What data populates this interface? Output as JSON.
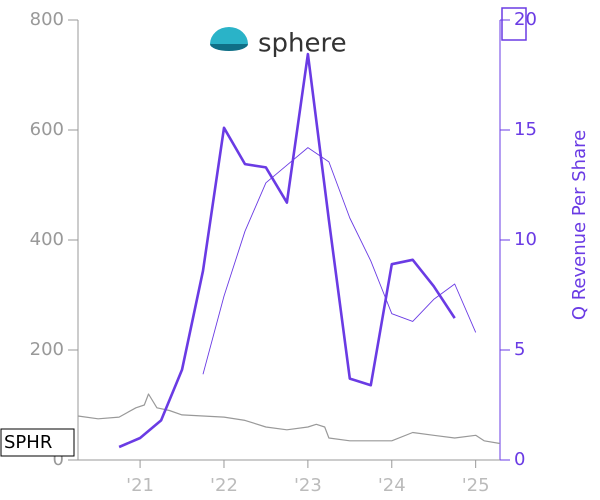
{
  "chart_data": {
    "type": "line",
    "logo_text": "sphere",
    "ticker": "SPHR",
    "y2_label": "Q Revenue Per Share",
    "xlim": [
      2020.26,
      2025.29
    ],
    "xticks": [
      {
        "value": 2021,
        "label": "'21"
      },
      {
        "value": 2022,
        "label": "'22"
      },
      {
        "value": 2023,
        "label": "'23"
      },
      {
        "value": 2024,
        "label": "'24"
      },
      {
        "value": 2025,
        "label": "'25"
      }
    ],
    "ylim": [
      0,
      800
    ],
    "yticks": [
      0,
      200,
      400,
      600,
      800
    ],
    "y2lim": [
      0,
      20
    ],
    "y2ticks": [
      0,
      5,
      10,
      15,
      20
    ],
    "grid": false,
    "series": [
      {
        "color": "#999999",
        "axis": "y",
        "width": 1.2,
        "x": [
          2020.26,
          2020.5,
          2020.75,
          2020.95,
          2021.05,
          2021.1,
          2021.2,
          2021.35,
          2021.5,
          2021.75,
          2022.0,
          2022.25,
          2022.5,
          2022.75,
          2023.0,
          2023.1,
          2023.2,
          2023.25,
          2023.5,
          2023.75,
          2024.0,
          2024.25,
          2024.5,
          2024.75,
          2025.0,
          2025.1,
          2025.29
        ],
        "values": [
          80,
          75,
          78,
          95,
          100,
          120,
          95,
          90,
          82,
          80,
          78,
          72,
          60,
          55,
          60,
          65,
          60,
          40,
          35,
          35,
          35,
          50,
          45,
          40,
          45,
          35,
          30
        ]
      },
      {
        "color": "#6a3be4",
        "axis": "y2",
        "width": 0.9,
        "x": [
          2021.75,
          2022.0,
          2022.25,
          2022.5,
          2022.75,
          2023.0,
          2023.25,
          2023.5,
          2023.75,
          2024.0,
          2024.25,
          2024.5,
          2024.75,
          2025.0
        ],
        "values": [
          3.9,
          7.45,
          10.4,
          12.6,
          13.4,
          14.2,
          13.55,
          11.0,
          9.05,
          6.65,
          6.3,
          7.3,
          8.0,
          5.8
        ]
      },
      {
        "color": "#6a3be4",
        "axis": "y2",
        "width": 2.6,
        "x": [
          2020.75,
          2021.0,
          2021.25,
          2021.5,
          2021.75,
          2022.0,
          2022.25,
          2022.5,
          2022.75,
          2023.0,
          2023.25,
          2023.5,
          2023.75,
          2024.0,
          2024.25,
          2024.5,
          2024.75
        ],
        "values": [
          0.59,
          1.0,
          1.8,
          4.1,
          8.6,
          15.1,
          13.45,
          13.3,
          11.7,
          18.45,
          10.9,
          3.7,
          3.4,
          8.9,
          9.1,
          7.9,
          6.45
        ]
      }
    ]
  }
}
